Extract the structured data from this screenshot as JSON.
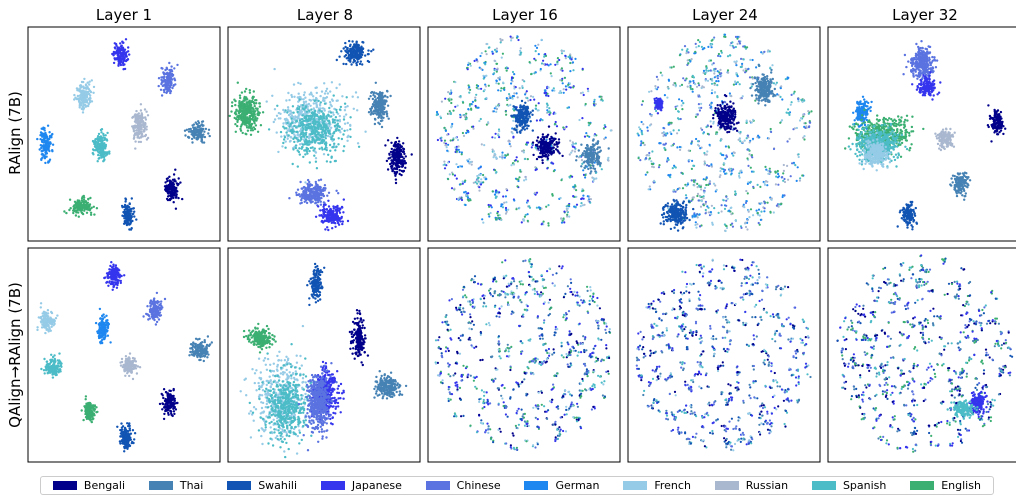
{
  "chart_data": {
    "type": "scatter",
    "columns": [
      "Layer 1",
      "Layer 8",
      "Layer 16",
      "Layer 24",
      "Layer 32"
    ],
    "rows": [
      "RAlign (7B)",
      "QAlign→RAlign (7B)"
    ],
    "legend": [
      {
        "name": "Bengali",
        "color": "#00008B"
      },
      {
        "name": "Thai",
        "color": "#4682B4"
      },
      {
        "name": "Swahili",
        "color": "#1154B3"
      },
      {
        "name": "Japanese",
        "color": "#3535EE"
      },
      {
        "name": "Chinese",
        "color": "#5A73E0"
      },
      {
        "name": "German",
        "color": "#1E87F0"
      },
      {
        "name": "French",
        "color": "#95CBE6"
      },
      {
        "name": "Russian",
        "color": "#A9B7CF"
      },
      {
        "name": "Spanish",
        "color": "#4CBCC7"
      },
      {
        "name": "English",
        "color": "#3BAF72"
      }
    ],
    "panels": [
      {
        "row": 0,
        "col": 0,
        "clusters": [
          {
            "lang": "Japanese",
            "x": 0.48,
            "y": 0.87,
            "sx": 0.03,
            "sy": 0.045
          },
          {
            "lang": "Chinese",
            "x": 0.73,
            "y": 0.75,
            "sx": 0.03,
            "sy": 0.05
          },
          {
            "lang": "French",
            "x": 0.29,
            "y": 0.68,
            "sx": 0.035,
            "sy": 0.05
          },
          {
            "lang": "Russian",
            "x": 0.58,
            "y": 0.54,
            "sx": 0.03,
            "sy": 0.06
          },
          {
            "lang": "German",
            "x": 0.09,
            "y": 0.45,
            "sx": 0.025,
            "sy": 0.06
          },
          {
            "lang": "Spanish",
            "x": 0.38,
            "y": 0.44,
            "sx": 0.03,
            "sy": 0.055
          },
          {
            "lang": "Thai",
            "x": 0.88,
            "y": 0.51,
            "sx": 0.04,
            "sy": 0.035
          },
          {
            "lang": "Bengali",
            "x": 0.75,
            "y": 0.24,
            "sx": 0.03,
            "sy": 0.045
          },
          {
            "lang": "English",
            "x": 0.28,
            "y": 0.16,
            "sx": 0.04,
            "sy": 0.03
          },
          {
            "lang": "Swahili",
            "x": 0.52,
            "y": 0.12,
            "sx": 0.025,
            "sy": 0.05
          }
        ],
        "scatter": []
      },
      {
        "row": 0,
        "col": 1,
        "clusters": [
          {
            "lang": "Swahili",
            "x": 0.66,
            "y": 0.88,
            "sx": 0.05,
            "sy": 0.04
          },
          {
            "lang": "English",
            "x": 0.1,
            "y": 0.6,
            "sx": 0.05,
            "sy": 0.07
          },
          {
            "lang": "French",
            "x": 0.43,
            "y": 0.57,
            "sx": 0.15,
            "sy": 0.12
          },
          {
            "lang": "Spanish",
            "x": 0.45,
            "y": 0.52,
            "sx": 0.12,
            "sy": 0.1
          },
          {
            "lang": "Thai",
            "x": 0.79,
            "y": 0.63,
            "sx": 0.035,
            "sy": 0.06
          },
          {
            "lang": "Bengali",
            "x": 0.88,
            "y": 0.39,
            "sx": 0.035,
            "sy": 0.065
          },
          {
            "lang": "Chinese",
            "x": 0.44,
            "y": 0.22,
            "sx": 0.06,
            "sy": 0.04
          },
          {
            "lang": "Japanese",
            "x": 0.54,
            "y": 0.12,
            "sx": 0.05,
            "sy": 0.04
          }
        ],
        "scatter": []
      },
      {
        "row": 0,
        "col": 2,
        "clusters": [
          {
            "lang": "Swahili",
            "x": 0.49,
            "y": 0.58,
            "sx": 0.035,
            "sy": 0.05
          },
          {
            "lang": "Bengali",
            "x": 0.62,
            "y": 0.44,
            "sx": 0.045,
            "sy": 0.045
          },
          {
            "lang": "Thai",
            "x": 0.85,
            "y": 0.4,
            "sx": 0.04,
            "sy": 0.045
          }
        ],
        "scatter": [
          "Spanish",
          "English",
          "French",
          "German",
          "Japanese",
          "Russian"
        ]
      },
      {
        "row": 0,
        "col": 3,
        "clusters": [
          {
            "lang": "Bengali",
            "x": 0.51,
            "y": 0.58,
            "sx": 0.045,
            "sy": 0.05
          },
          {
            "lang": "Thai",
            "x": 0.71,
            "y": 0.71,
            "sx": 0.04,
            "sy": 0.06
          },
          {
            "lang": "Swahili",
            "x": 0.25,
            "y": 0.13,
            "sx": 0.05,
            "sy": 0.05
          },
          {
            "lang": "Japanese",
            "x": 0.16,
            "y": 0.64,
            "sx": 0.015,
            "sy": 0.02
          }
        ],
        "scatter": [
          "Spanish",
          "English",
          "French",
          "German",
          "Russian",
          "Chinese"
        ]
      },
      {
        "row": 0,
        "col": 4,
        "clusters": [
          {
            "lang": "Chinese",
            "x": 0.49,
            "y": 0.83,
            "sx": 0.05,
            "sy": 0.06
          },
          {
            "lang": "Japanese",
            "x": 0.52,
            "y": 0.72,
            "sx": 0.04,
            "sy": 0.035
          },
          {
            "lang": "German",
            "x": 0.18,
            "y": 0.6,
            "sx": 0.03,
            "sy": 0.05
          },
          {
            "lang": "English",
            "x": 0.28,
            "y": 0.5,
            "sx": 0.12,
            "sy": 0.06
          },
          {
            "lang": "Spanish",
            "x": 0.26,
            "y": 0.45,
            "sx": 0.09,
            "sy": 0.06
          },
          {
            "lang": "French",
            "x": 0.25,
            "y": 0.41,
            "sx": 0.05,
            "sy": 0.05
          },
          {
            "lang": "Russian",
            "x": 0.61,
            "y": 0.48,
            "sx": 0.035,
            "sy": 0.035
          },
          {
            "lang": "Bengali",
            "x": 0.88,
            "y": 0.55,
            "sx": 0.03,
            "sy": 0.045
          },
          {
            "lang": "Thai",
            "x": 0.69,
            "y": 0.27,
            "sx": 0.03,
            "sy": 0.045
          },
          {
            "lang": "Swahili",
            "x": 0.42,
            "y": 0.12,
            "sx": 0.03,
            "sy": 0.045
          }
        ],
        "scatter": []
      },
      {
        "row": 1,
        "col": 0,
        "clusters": [
          {
            "lang": "Japanese",
            "x": 0.45,
            "y": 0.87,
            "sx": 0.03,
            "sy": 0.04
          },
          {
            "lang": "Chinese",
            "x": 0.66,
            "y": 0.71,
            "sx": 0.03,
            "sy": 0.04
          },
          {
            "lang": "French",
            "x": 0.1,
            "y": 0.66,
            "sx": 0.035,
            "sy": 0.04
          },
          {
            "lang": "German",
            "x": 0.39,
            "y": 0.62,
            "sx": 0.025,
            "sy": 0.045
          },
          {
            "lang": "Spanish",
            "x": 0.13,
            "y": 0.44,
            "sx": 0.035,
            "sy": 0.035
          },
          {
            "lang": "Russian",
            "x": 0.53,
            "y": 0.45,
            "sx": 0.03,
            "sy": 0.035
          },
          {
            "lang": "Thai",
            "x": 0.9,
            "y": 0.52,
            "sx": 0.04,
            "sy": 0.035
          },
          {
            "lang": "Bengali",
            "x": 0.74,
            "y": 0.28,
            "sx": 0.03,
            "sy": 0.045
          },
          {
            "lang": "English",
            "x": 0.32,
            "y": 0.24,
            "sx": 0.025,
            "sy": 0.04
          },
          {
            "lang": "Swahili",
            "x": 0.51,
            "y": 0.11,
            "sx": 0.025,
            "sy": 0.045
          }
        ],
        "scatter": []
      },
      {
        "row": 1,
        "col": 1,
        "clusters": [
          {
            "lang": "Swahili",
            "x": 0.46,
            "y": 0.83,
            "sx": 0.025,
            "sy": 0.06
          },
          {
            "lang": "English",
            "x": 0.17,
            "y": 0.58,
            "sx": 0.05,
            "sy": 0.04
          },
          {
            "lang": "Bengali",
            "x": 0.68,
            "y": 0.58,
            "sx": 0.025,
            "sy": 0.08
          },
          {
            "lang": "French",
            "x": 0.28,
            "y": 0.3,
            "sx": 0.12,
            "sy": 0.16
          },
          {
            "lang": "Spanish",
            "x": 0.3,
            "y": 0.26,
            "sx": 0.1,
            "sy": 0.13
          },
          {
            "lang": "Japanese",
            "x": 0.51,
            "y": 0.32,
            "sx": 0.05,
            "sy": 0.09
          },
          {
            "lang": "Chinese",
            "x": 0.47,
            "y": 0.28,
            "sx": 0.05,
            "sy": 0.11
          },
          {
            "lang": "Thai",
            "x": 0.83,
            "y": 0.35,
            "sx": 0.05,
            "sy": 0.045
          }
        ],
        "scatter": []
      },
      {
        "row": 1,
        "col": 2,
        "clusters": [],
        "scatter": [
          "Spanish",
          "Swahili",
          "Bengali",
          "Japanese",
          "English",
          "Thai",
          "Chinese",
          "French"
        ]
      },
      {
        "row": 1,
        "col": 3,
        "clusters": [],
        "scatter": [
          "Spanish",
          "Swahili",
          "Bengali",
          "Japanese",
          "Thai",
          "French",
          "Chinese"
        ]
      },
      {
        "row": 1,
        "col": 4,
        "clusters": [
          {
            "lang": "Japanese",
            "x": 0.78,
            "y": 0.27,
            "sx": 0.03,
            "sy": 0.04
          },
          {
            "lang": "Spanish",
            "x": 0.7,
            "y": 0.25,
            "sx": 0.05,
            "sy": 0.03
          }
        ],
        "scatter": [
          "Spanish",
          "Swahili",
          "Bengali",
          "Japanese",
          "Thai",
          "Chinese",
          "English"
        ]
      }
    ]
  }
}
